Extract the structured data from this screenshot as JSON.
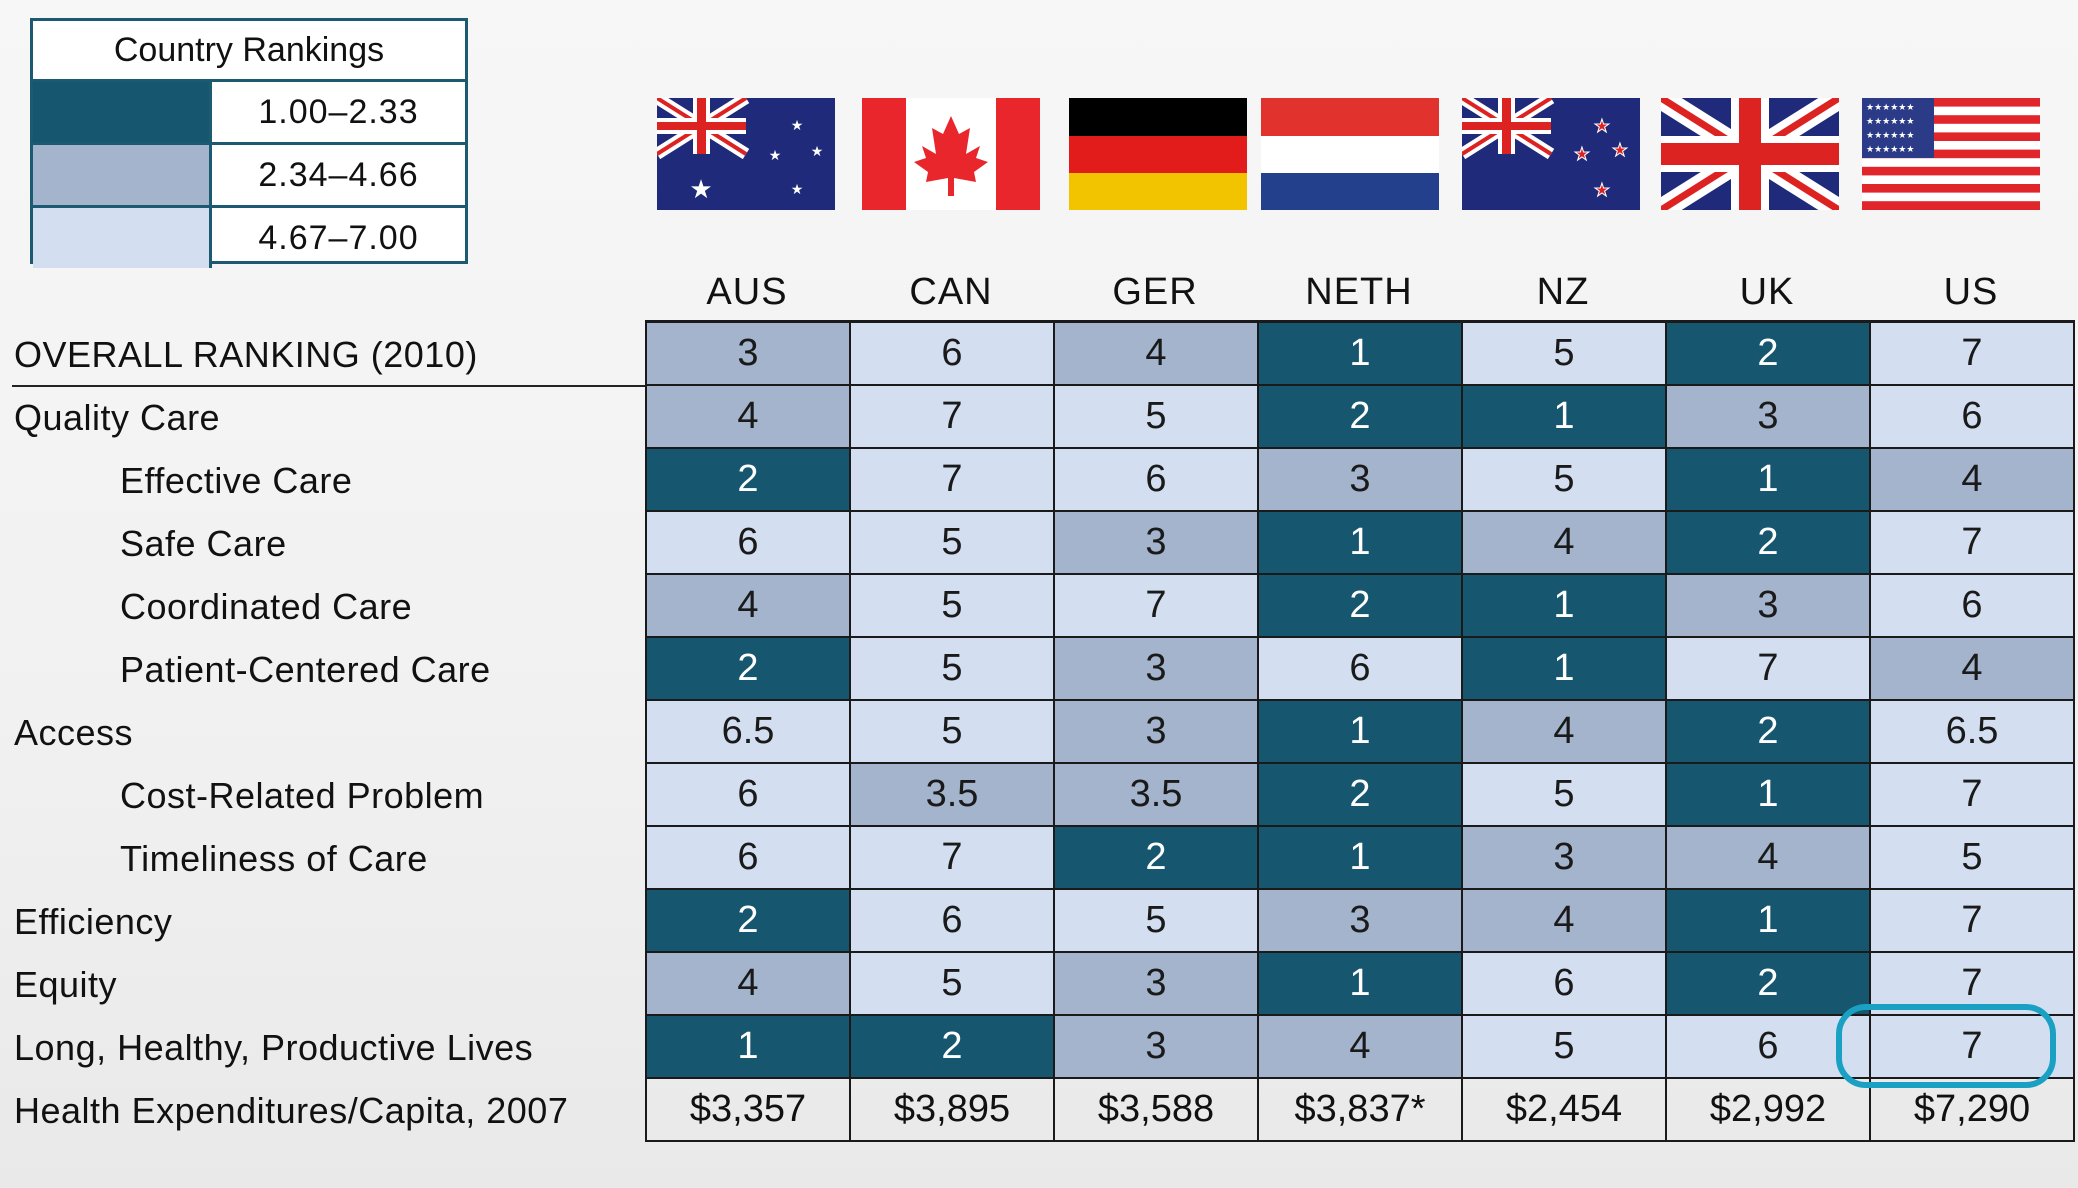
{
  "legend": {
    "title": "Country Rankings",
    "ranges": [
      {
        "label": "1.00–2.33",
        "color": "#16566e"
      },
      {
        "label": "2.34–4.66",
        "color": "#a3b4cc"
      },
      {
        "label": "4.67–7.00",
        "color": "#d3dff0"
      }
    ]
  },
  "chart_data": {
    "type": "table",
    "title": "Country Rankings",
    "columns": [
      "AUS",
      "CAN",
      "GER",
      "NETH",
      "NZ",
      "UK",
      "US"
    ],
    "flags": [
      "australia-flag-icon",
      "canada-flag-icon",
      "germany-flag-icon",
      "netherlands-flag-icon",
      "new-zealand-flag-icon",
      "uk-flag-icon",
      "us-flag-icon"
    ],
    "rows": [
      {
        "label": "OVERALL RANKING (2010)",
        "indent": false,
        "values": [
          "3",
          "6",
          "4",
          "1",
          "5",
          "2",
          "7"
        ]
      },
      {
        "label": "Quality Care",
        "indent": false,
        "values": [
          "4",
          "7",
          "5",
          "2",
          "1",
          "3",
          "6"
        ]
      },
      {
        "label": "Effective Care",
        "indent": true,
        "values": [
          "2",
          "7",
          "6",
          "3",
          "5",
          "1",
          "4"
        ]
      },
      {
        "label": "Safe Care",
        "indent": true,
        "values": [
          "6",
          "5",
          "3",
          "1",
          "4",
          "2",
          "7"
        ]
      },
      {
        "label": "Coordinated Care",
        "indent": true,
        "values": [
          "4",
          "5",
          "7",
          "2",
          "1",
          "3",
          "6"
        ]
      },
      {
        "label": "Patient-Centered Care",
        "indent": true,
        "values": [
          "2",
          "5",
          "3",
          "6",
          "1",
          "7",
          "4"
        ]
      },
      {
        "label": "Access",
        "indent": false,
        "values": [
          "6.5",
          "5",
          "3",
          "1",
          "4",
          "2",
          "6.5"
        ]
      },
      {
        "label": "Cost-Related Problem",
        "indent": true,
        "values": [
          "6",
          "3.5",
          "3.5",
          "2",
          "5",
          "1",
          "7"
        ]
      },
      {
        "label": "Timeliness of Care",
        "indent": true,
        "values": [
          "6",
          "7",
          "2",
          "1",
          "3",
          "4",
          "5"
        ]
      },
      {
        "label": "Efficiency",
        "indent": false,
        "values": [
          "2",
          "6",
          "5",
          "3",
          "4",
          "1",
          "7"
        ]
      },
      {
        "label": "Equity",
        "indent": false,
        "values": [
          "4",
          "5",
          "3",
          "1",
          "6",
          "2",
          "7"
        ]
      },
      {
        "label": "Long, Healthy, Productive Lives",
        "indent": false,
        "values": [
          "1",
          "2",
          "3",
          "4",
          "5",
          "6",
          "7"
        ]
      }
    ],
    "expenditure_row": {
      "label": "Health Expenditures/Capita, 2007",
      "values": [
        "$3,357",
        "$3,895",
        "$3,588",
        "$3,837*",
        "$2,454",
        "$2,992",
        "$7,290"
      ]
    },
    "highlighted_cell": {
      "row": "Long, Healthy, Productive Lives",
      "column": "US",
      "color": "#1aa0c2"
    }
  }
}
